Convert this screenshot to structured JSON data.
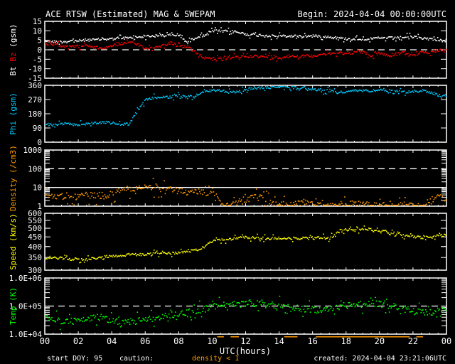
{
  "header": {
    "title": "ACE RTSW (Estimated) MAG & SWEPAM",
    "begin": "Begin: 2024-04-04 00:00:00UTC"
  },
  "footer": {
    "start_doy": "start DOY:  95",
    "caution": "caution:",
    "density_note": "density < 1",
    "created": "created: 2024-04-04 23:21:06UTC"
  },
  "colors": {
    "bt": "#ffffff",
    "bz": "#ff0000",
    "phi": "#00ccff",
    "density": "#ff9900",
    "speed": "#ffff00",
    "temp": "#00ff00"
  },
  "chart_data": {
    "type": "scatter",
    "title": "ACE RTSW (Estimated) MAG & SWEPAM",
    "xlabel": "UTC(hours)",
    "xlim": [
      0,
      24
    ],
    "x_tick_labels": [
      "00",
      "02",
      "04",
      "06",
      "08",
      "10",
      "12",
      "14",
      "16",
      "18",
      "20",
      "22",
      "00"
    ],
    "x": [
      0,
      0.5,
      1,
      1.5,
      2,
      2.5,
      3,
      3.5,
      4,
      4.5,
      5,
      5.5,
      6,
      6.5,
      7,
      7.5,
      8,
      8.5,
      9,
      9.5,
      10,
      10.5,
      11,
      11.5,
      12,
      12.5,
      13,
      13.5,
      14,
      14.5,
      15,
      15.5,
      16,
      16.5,
      17,
      17.5,
      18,
      18.5,
      19,
      19.5,
      20,
      20.5,
      21,
      21.5,
      22,
      22.5,
      23,
      23.5,
      24
    ],
    "panels": [
      {
        "name": "mag",
        "ylabel_parts": [
          {
            "text": "Bt",
            "color": "bt"
          },
          {
            "text": " Bz",
            "color": "bz"
          },
          {
            "text": "  (gsm)",
            "color": "bt"
          }
        ],
        "scale": "linear",
        "ylim": [
          -15,
          15
        ],
        "ticks": [
          {
            "v": 15,
            "label": "15"
          },
          {
            "v": 10,
            "label": "10"
          },
          {
            "v": 5,
            "label": "5"
          },
          {
            "v": 0,
            "label": "0"
          },
          {
            "v": -5,
            "label": "-5"
          },
          {
            "v": -10,
            "label": "-10"
          },
          {
            "v": -15,
            "label": "-15"
          }
        ],
        "reference_lines": [
          {
            "v": 0,
            "style": "dashed"
          }
        ],
        "series": [
          {
            "name": "Bt",
            "color": "bt",
            "values": [
              5,
              4.5,
              4.5,
              5,
              5,
              5.5,
              5.5,
              6,
              6,
              6.5,
              6.5,
              7,
              7.5,
              7.5,
              8,
              8,
              8,
              4,
              7,
              8,
              10.5,
              10,
              10,
              9.5,
              8.5,
              8,
              8,
              7.5,
              7.5,
              7.5,
              7.5,
              7.5,
              7.5,
              7.5,
              7,
              6.5,
              6,
              6,
              6,
              6,
              6.5,
              6.5,
              6.5,
              7,
              7,
              6.5,
              6,
              5.5,
              5
            ]
          },
          {
            "name": "Bz",
            "color": "bz",
            "values": [
              3,
              3,
              2.5,
              2.5,
              2,
              2.5,
              1.5,
              1,
              2.5,
              3.5,
              4,
              3.5,
              1,
              1.5,
              2.5,
              4,
              2,
              2,
              -1,
              -4,
              -4,
              -5,
              -4,
              -3.5,
              -3,
              -3,
              -3.5,
              -3,
              -4,
              -3,
              -3,
              -3,
              -3,
              -2,
              -2,
              -1,
              -2,
              -1,
              -1,
              -3,
              -1,
              -3,
              -2,
              -1,
              -3,
              -1,
              -1,
              0,
              0
            ]
          }
        ]
      },
      {
        "name": "phi",
        "ylabel_parts": [
          {
            "text": "Phi  (gsm)",
            "color": "phi"
          }
        ],
        "scale": "linear",
        "ylim": [
          0,
          360
        ],
        "ticks": [
          {
            "v": 360,
            "label": "360"
          },
          {
            "v": 270,
            "label": "270"
          },
          {
            "v": 180,
            "label": "180"
          },
          {
            "v": 90,
            "label": "90"
          },
          {
            "v": 0,
            "label": "0"
          }
        ],
        "reference_lines": [],
        "series": [
          {
            "name": "Phi",
            "color": "phi",
            "values": [
              120,
              110,
              120,
              115,
              115,
              120,
              125,
              130,
              125,
              115,
              120,
              200,
              270,
              285,
              290,
              285,
              300,
              290,
              300,
              320,
              330,
              330,
              320,
              320,
              335,
              345,
              350,
              350,
              355,
              355,
              350,
              345,
              340,
              330,
              330,
              320,
              320,
              330,
              330,
              330,
              340,
              330,
              330,
              320,
              325,
              330,
              320,
              300,
              300
            ]
          }
        ]
      },
      {
        "name": "density",
        "ylabel_parts": [
          {
            "text": "Density  (/cm3)",
            "color": "density"
          }
        ],
        "scale": "log",
        "ylim": [
          1,
          1000
        ],
        "ticks": [
          {
            "v": 1000,
            "label": "1000"
          },
          {
            "v": 100,
            "label": "100"
          },
          {
            "v": 10,
            "label": "10"
          },
          {
            "v": 1,
            "label": "1"
          }
        ],
        "reference_lines": [
          {
            "v": 100,
            "style": "dashed"
          },
          {
            "v": 10,
            "style": "solid"
          }
        ],
        "series": [
          {
            "name": "Density",
            "color": "density",
            "values": [
              3.5,
              4,
              3.5,
              4,
              4,
              4,
              4,
              4,
              4.5,
              8,
              9,
              10,
              11,
              10,
              9,
              8,
              7,
              6,
              6,
              6,
              6,
              1.5,
              1.3,
              1.8,
              2.5,
              3,
              3,
              1.6,
              1.4,
              1.3,
              1.5,
              1.6,
              1.3,
              1.1,
              1.1,
              1.3,
              1.3,
              1.5,
              1.3,
              1.1,
              1.1,
              1.1,
              1.1,
              1.3,
              1.2,
              1.1,
              2,
              3,
              3
            ]
          }
        ]
      },
      {
        "name": "speed",
        "ylabel_parts": [
          {
            "text": "Speed  (km/s)",
            "color": "speed"
          }
        ],
        "scale": "log",
        "ylim": [
          300,
          600
        ],
        "ticks": [
          {
            "v": 600,
            "label": "600"
          },
          {
            "v": 550,
            "label": "550"
          },
          {
            "v": 500,
            "label": "500"
          },
          {
            "v": 450,
            "label": "450"
          },
          {
            "v": 400,
            "label": "400"
          },
          {
            "v": 350,
            "label": "350"
          },
          {
            "v": 300,
            "label": "300"
          }
        ],
        "reference_lines": [],
        "series": [
          {
            "name": "Speed",
            "color": "speed",
            "values": [
              350,
              350,
              350,
              345,
              345,
              345,
              350,
              355,
              360,
              360,
              365,
              365,
              365,
              370,
              370,
              370,
              375,
              380,
              385,
              400,
              430,
              435,
              440,
              445,
              450,
              450,
              445,
              445,
              445,
              445,
              445,
              445,
              445,
              450,
              445,
              480,
              495,
              490,
              500,
              495,
              490,
              480,
              475,
              460,
              455,
              450,
              450,
              460,
              460
            ]
          }
        ]
      },
      {
        "name": "temp",
        "ylabel_parts": [
          {
            "text": "Temp  (K)",
            "color": "temp"
          }
        ],
        "scale": "log",
        "ylim": [
          10000,
          1000000
        ],
        "ticks": [
          {
            "v": 1000000,
            "label": "1.0E+06"
          },
          {
            "v": 100000,
            "label": "1.0E+05"
          },
          {
            "v": 10000,
            "label": "1.0E+04"
          }
        ],
        "reference_lines": [
          {
            "v": 100000,
            "style": "dashed"
          }
        ],
        "series": [
          {
            "name": "Temp",
            "color": "temp",
            "values": [
              40000,
              35000,
              30000,
              30000,
              30000,
              35000,
              40000,
              40000,
              30000,
              30000,
              30000,
              30000,
              35000,
              40000,
              45000,
              50000,
              55000,
              60000,
              70000,
              80000,
              100000,
              110000,
              120000,
              110000,
              130000,
              130000,
              120000,
              110000,
              110000,
              100000,
              90000,
              80000,
              80000,
              70000,
              90000,
              100000,
              110000,
              120000,
              120000,
              130000,
              120000,
              100000,
              100000,
              80000,
              70000,
              60000,
              60000,
              70000,
              70000
            ]
          }
        ]
      }
    ],
    "caution_intervals_density_below_1": [
      [
        10.3,
        10.7
      ],
      [
        11.1,
        11.6
      ],
      [
        14.3,
        15.1
      ],
      [
        16.2,
        21.8
      ],
      [
        22.2,
        22.6
      ]
    ]
  }
}
